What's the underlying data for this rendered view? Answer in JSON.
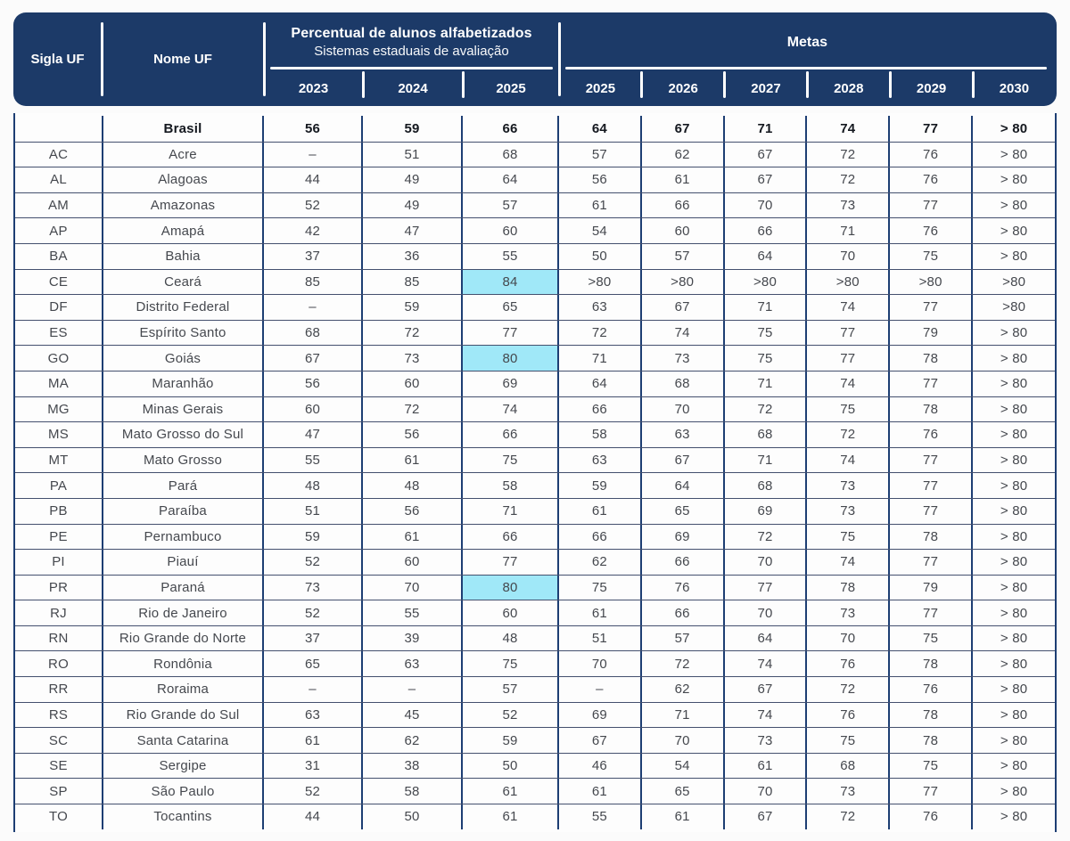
{
  "colors": {
    "header_bg": "#1c3a68",
    "grid_vertical_line": "#1d3e73",
    "grid_row_line": "#44506e",
    "highlight_cyan": "#a0e8f8",
    "header_text": "#ffffff",
    "body_text": "#45484e"
  },
  "chart_data": {
    "type": "table",
    "header": {
      "sigla": "Sigla UF",
      "nome": "Nome UF",
      "group1_title": "Percentual de alunos alfabetizados",
      "group1_subtitle": "Sistemas estaduais de avaliação",
      "group1_years": [
        "2023",
        "2024",
        "2025"
      ],
      "group2_title": "Metas",
      "group2_years": [
        "2025",
        "2026",
        "2027",
        "2028",
        "2029",
        "2030"
      ]
    },
    "rows": [
      {
        "sigla": "",
        "nome": "Brasil",
        "bold": true,
        "values": [
          "56",
          "59",
          "66",
          "64",
          "67",
          "71",
          "74",
          "77",
          "> 80"
        ],
        "highlight": []
      },
      {
        "sigla": "AC",
        "nome": "Acre",
        "bold": false,
        "values": [
          "–",
          "51",
          "68",
          "57",
          "62",
          "67",
          "72",
          "76",
          "> 80"
        ],
        "highlight": []
      },
      {
        "sigla": "AL",
        "nome": "Alagoas",
        "bold": false,
        "values": [
          "44",
          "49",
          "64",
          "56",
          "61",
          "67",
          "72",
          "76",
          "> 80"
        ],
        "highlight": []
      },
      {
        "sigla": "AM",
        "nome": "Amazonas",
        "bold": false,
        "values": [
          "52",
          "49",
          "57",
          "61",
          "66",
          "70",
          "73",
          "77",
          "> 80"
        ],
        "highlight": []
      },
      {
        "sigla": "AP",
        "nome": "Amapá",
        "bold": false,
        "values": [
          "42",
          "47",
          "60",
          "54",
          "60",
          "66",
          "71",
          "76",
          "> 80"
        ],
        "highlight": []
      },
      {
        "sigla": "BA",
        "nome": "Bahia",
        "bold": false,
        "values": [
          "37",
          "36",
          "55",
          "50",
          "57",
          "64",
          "70",
          "75",
          "> 80"
        ],
        "highlight": []
      },
      {
        "sigla": "CE",
        "nome": "Ceará",
        "bold": false,
        "values": [
          "85",
          "85",
          "84",
          ">80",
          ">80",
          ">80",
          ">80",
          ">80",
          ">80"
        ],
        "highlight": [
          2
        ]
      },
      {
        "sigla": "DF",
        "nome": "Distrito Federal",
        "bold": false,
        "values": [
          "–",
          "59",
          "65",
          "63",
          "67",
          "71",
          "74",
          "77",
          ">80"
        ],
        "highlight": []
      },
      {
        "sigla": "ES",
        "nome": "Espírito Santo",
        "bold": false,
        "values": [
          "68",
          "72",
          "77",
          "72",
          "74",
          "75",
          "77",
          "79",
          "> 80"
        ],
        "highlight": []
      },
      {
        "sigla": "GO",
        "nome": "Goiás",
        "bold": false,
        "values": [
          "67",
          "73",
          "80",
          "71",
          "73",
          "75",
          "77",
          "78",
          "> 80"
        ],
        "highlight": [
          2
        ]
      },
      {
        "sigla": "MA",
        "nome": "Maranhão",
        "bold": false,
        "values": [
          "56",
          "60",
          "69",
          "64",
          "68",
          "71",
          "74",
          "77",
          "> 80"
        ],
        "highlight": []
      },
      {
        "sigla": "MG",
        "nome": "Minas Gerais",
        "bold": false,
        "values": [
          "60",
          "72",
          "74",
          "66",
          "70",
          "72",
          "75",
          "78",
          "> 80"
        ],
        "highlight": []
      },
      {
        "sigla": "MS",
        "nome": "Mato Grosso do Sul",
        "bold": false,
        "values": [
          "47",
          "56",
          "66",
          "58",
          "63",
          "68",
          "72",
          "76",
          "> 80"
        ],
        "highlight": []
      },
      {
        "sigla": "MT",
        "nome": "Mato Grosso",
        "bold": false,
        "values": [
          "55",
          "61",
          "75",
          "63",
          "67",
          "71",
          "74",
          "77",
          "> 80"
        ],
        "highlight": []
      },
      {
        "sigla": "PA",
        "nome": "Pará",
        "bold": false,
        "values": [
          "48",
          "48",
          "58",
          "59",
          "64",
          "68",
          "73",
          "77",
          "> 80"
        ],
        "highlight": []
      },
      {
        "sigla": "PB",
        "nome": "Paraíba",
        "bold": false,
        "values": [
          "51",
          "56",
          "71",
          "61",
          "65",
          "69",
          "73",
          "77",
          "> 80"
        ],
        "highlight": []
      },
      {
        "sigla": "PE",
        "nome": "Pernambuco",
        "bold": false,
        "values": [
          "59",
          "61",
          "66",
          "66",
          "69",
          "72",
          "75",
          "78",
          "> 80"
        ],
        "highlight": []
      },
      {
        "sigla": "PI",
        "nome": "Piauí",
        "bold": false,
        "values": [
          "52",
          "60",
          "77",
          "62",
          "66",
          "70",
          "74",
          "77",
          "> 80"
        ],
        "highlight": []
      },
      {
        "sigla": "PR",
        "nome": "Paraná",
        "bold": false,
        "values": [
          "73",
          "70",
          "80",
          "75",
          "76",
          "77",
          "78",
          "79",
          "> 80"
        ],
        "highlight": [
          2
        ]
      },
      {
        "sigla": "RJ",
        "nome": "Rio de Janeiro",
        "bold": false,
        "values": [
          "52",
          "55",
          "60",
          "61",
          "66",
          "70",
          "73",
          "77",
          "> 80"
        ],
        "highlight": []
      },
      {
        "sigla": "RN",
        "nome": "Rio Grande do Norte",
        "bold": false,
        "values": [
          "37",
          "39",
          "48",
          "51",
          "57",
          "64",
          "70",
          "75",
          "> 80"
        ],
        "highlight": []
      },
      {
        "sigla": "RO",
        "nome": "Rondônia",
        "bold": false,
        "values": [
          "65",
          "63",
          "75",
          "70",
          "72",
          "74",
          "76",
          "78",
          "> 80"
        ],
        "highlight": []
      },
      {
        "sigla": "RR",
        "nome": "Roraima",
        "bold": false,
        "values": [
          "–",
          "–",
          "57",
          "–",
          "62",
          "67",
          "72",
          "76",
          "> 80"
        ],
        "highlight": []
      },
      {
        "sigla": "RS",
        "nome": "Rio Grande do Sul",
        "bold": false,
        "values": [
          "63",
          "45",
          "52",
          "69",
          "71",
          "74",
          "76",
          "78",
          "> 80"
        ],
        "highlight": []
      },
      {
        "sigla": "SC",
        "nome": "Santa Catarina",
        "bold": false,
        "values": [
          "61",
          "62",
          "59",
          "67",
          "70",
          "73",
          "75",
          "78",
          "> 80"
        ],
        "highlight": []
      },
      {
        "sigla": "SE",
        "nome": "Sergipe",
        "bold": false,
        "values": [
          "31",
          "38",
          "50",
          "46",
          "54",
          "61",
          "68",
          "75",
          "> 80"
        ],
        "highlight": []
      },
      {
        "sigla": "SP",
        "nome": "São Paulo",
        "bold": false,
        "values": [
          "52",
          "58",
          "61",
          "61",
          "65",
          "70",
          "73",
          "77",
          "> 80"
        ],
        "highlight": []
      },
      {
        "sigla": "TO",
        "nome": "Tocantins",
        "bold": false,
        "values": [
          "44",
          "50",
          "61",
          "55",
          "61",
          "67",
          "72",
          "76",
          "> 80"
        ],
        "highlight": []
      }
    ]
  }
}
